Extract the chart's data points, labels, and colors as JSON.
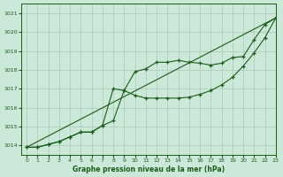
{
  "title": "Graphe pression niveau de la mer (hPa)",
  "bg_color": "#cce8d8",
  "grid_color": "#aac8b8",
  "line_color": "#1a5c1a",
  "xlim": [
    -0.5,
    23
  ],
  "ylim": [
    1013.5,
    1021.5
  ],
  "yticks": [
    1014,
    1015,
    1016,
    1017,
    1018,
    1019,
    1020,
    1021
  ],
  "xticks": [
    0,
    1,
    2,
    3,
    4,
    5,
    6,
    7,
    8,
    9,
    10,
    11,
    12,
    13,
    14,
    15,
    16,
    17,
    18,
    19,
    20,
    21,
    22,
    23
  ],
  "series1_x": [
    0,
    1,
    2,
    3,
    4,
    5,
    6,
    7,
    8,
    9,
    10,
    11,
    12,
    13,
    14,
    15,
    16,
    17,
    18,
    19,
    20,
    21,
    22,
    23
  ],
  "series1_y": [
    1013.9,
    1013.9,
    1014.05,
    1014.2,
    1014.45,
    1014.7,
    1014.7,
    1015.05,
    1017.0,
    1016.9,
    1016.65,
    1016.5,
    1016.5,
    1016.5,
    1016.5,
    1016.55,
    1016.7,
    1016.9,
    1017.2,
    1017.6,
    1018.2,
    1018.9,
    1019.7,
    1020.75
  ],
  "series2_x": [
    0,
    1,
    2,
    3,
    4,
    5,
    6,
    7,
    8,
    9,
    10,
    11,
    12,
    13,
    14,
    15,
    16,
    17,
    18,
    19,
    20,
    21,
    22,
    23
  ],
  "series2_y": [
    1013.9,
    1013.9,
    1014.05,
    1014.2,
    1014.45,
    1014.7,
    1014.7,
    1015.05,
    1015.3,
    1016.9,
    1017.9,
    1018.05,
    1018.4,
    1018.4,
    1018.5,
    1018.4,
    1018.35,
    1018.25,
    1018.35,
    1018.65,
    1018.7,
    1019.6,
    1020.4,
    1020.75
  ],
  "series3_x": [
    0,
    23
  ],
  "series3_y": [
    1013.9,
    1020.75
  ]
}
